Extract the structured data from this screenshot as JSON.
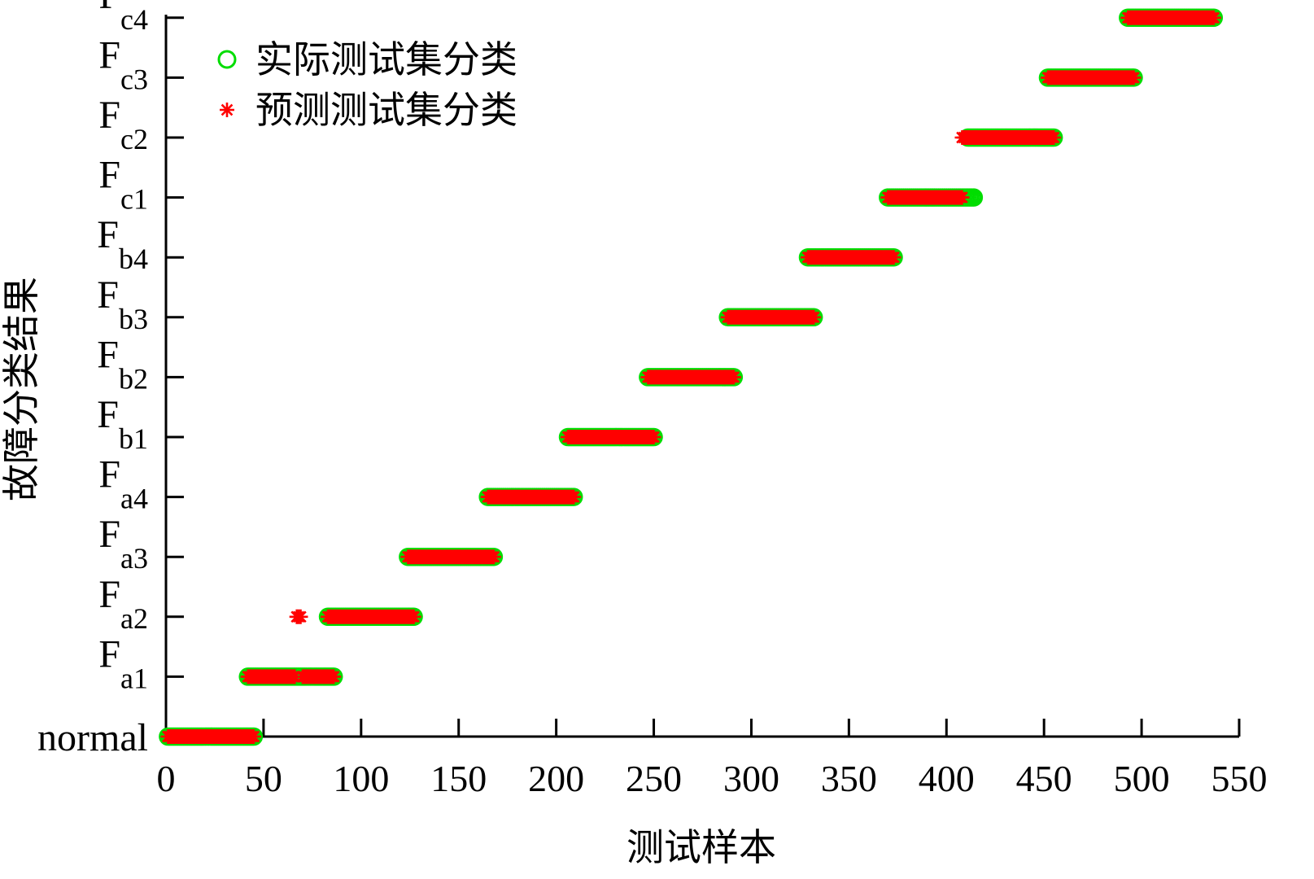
{
  "chart_data": {
    "type": "scatter",
    "xlabel": "测试样本",
    "ylabel": "故障分类结果",
    "xlim": [
      0,
      550
    ],
    "xticks": [
      0,
      50,
      100,
      150,
      200,
      250,
      300,
      350,
      400,
      450,
      500,
      550
    ],
    "y_categories": [
      {
        "base": "normal",
        "sub": ""
      },
      {
        "base": "F",
        "sub": "a1"
      },
      {
        "base": "F",
        "sub": "a2"
      },
      {
        "base": "F",
        "sub": "a3"
      },
      {
        "base": "F",
        "sub": "a4"
      },
      {
        "base": "F",
        "sub": "b1"
      },
      {
        "base": "F",
        "sub": "b2"
      },
      {
        "base": "F",
        "sub": "b3"
      },
      {
        "base": "F",
        "sub": "b4"
      },
      {
        "base": "F",
        "sub": "c1"
      },
      {
        "base": "F",
        "sub": "c2"
      },
      {
        "base": "F",
        "sub": "c3"
      },
      {
        "base": "F",
        "sub": "c4"
      }
    ],
    "legend": {
      "position": "top-left"
    },
    "series": [
      {
        "name": "实际测试集分类",
        "marker": "circle",
        "color": "#00dd00",
        "segments": [
          {
            "x_start": 1,
            "x_end": 45,
            "class_index": 0
          },
          {
            "x_start": 42,
            "x_end": 86,
            "class_index": 1
          },
          {
            "x_start": 83,
            "x_end": 127,
            "class_index": 2
          },
          {
            "x_start": 124,
            "x_end": 168,
            "class_index": 3
          },
          {
            "x_start": 165,
            "x_end": 209,
            "class_index": 4
          },
          {
            "x_start": 206,
            "x_end": 250,
            "class_index": 5
          },
          {
            "x_start": 247,
            "x_end": 291,
            "class_index": 6
          },
          {
            "x_start": 288,
            "x_end": 332,
            "class_index": 7
          },
          {
            "x_start": 329,
            "x_end": 373,
            "class_index": 8
          },
          {
            "x_start": 370,
            "x_end": 414,
            "class_index": 9
          },
          {
            "x_start": 411,
            "x_end": 455,
            "class_index": 10
          },
          {
            "x_start": 452,
            "x_end": 496,
            "class_index": 11
          },
          {
            "x_start": 493,
            "x_end": 537,
            "class_index": 12
          }
        ]
      },
      {
        "name": "预测测试集分类",
        "marker": "asterisk",
        "color": "#ff0000",
        "segments": [
          {
            "x_start": 1,
            "x_end": 45,
            "class_index": 0
          },
          {
            "x_start": 42,
            "x_end": 66,
            "class_index": 1
          },
          {
            "x_start": 67,
            "x_end": 69,
            "class_index": 2
          },
          {
            "x_start": 70,
            "x_end": 86,
            "class_index": 1
          },
          {
            "x_start": 83,
            "x_end": 127,
            "class_index": 2
          },
          {
            "x_start": 124,
            "x_end": 168,
            "class_index": 3
          },
          {
            "x_start": 165,
            "x_end": 209,
            "class_index": 4
          },
          {
            "x_start": 206,
            "x_end": 250,
            "class_index": 5
          },
          {
            "x_start": 247,
            "x_end": 291,
            "class_index": 6
          },
          {
            "x_start": 288,
            "x_end": 332,
            "class_index": 7
          },
          {
            "x_start": 329,
            "x_end": 373,
            "class_index": 8
          },
          {
            "x_start": 370,
            "x_end": 408,
            "class_index": 9
          },
          {
            "x_start": 408,
            "x_end": 455,
            "class_index": 10
          },
          {
            "x_start": 452,
            "x_end": 496,
            "class_index": 11
          },
          {
            "x_start": 493,
            "x_end": 537,
            "class_index": 12
          }
        ]
      }
    ]
  }
}
